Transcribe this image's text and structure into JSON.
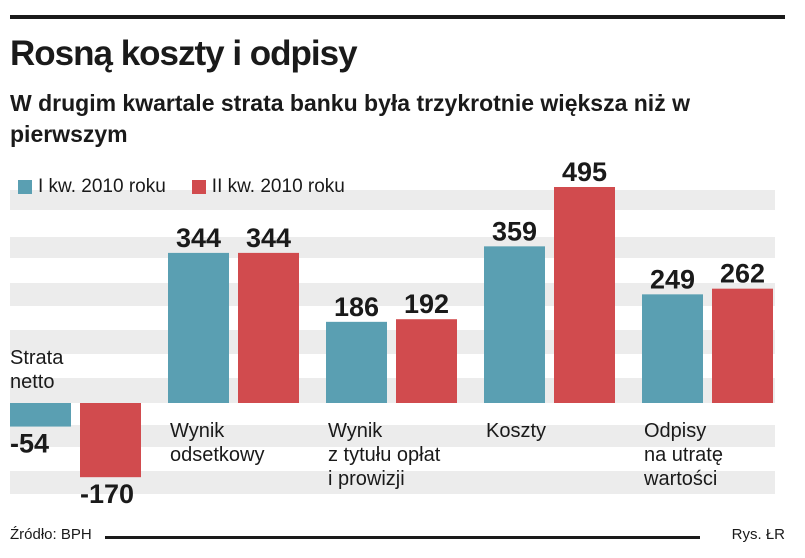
{
  "title": "Rosną koszty i odpisy",
  "subtitle": "W drugim kwartale strata banku była trzykrotnie większa niż w pierwszym",
  "source": "Źródło: BPH",
  "credit": "Rys. ŁR",
  "colors": {
    "series1": "#5a9fb2",
    "series2": "#d14b4e",
    "band": "#ececec"
  },
  "chart_data": {
    "type": "bar",
    "categories": [
      [
        "Strata",
        "netto"
      ],
      [
        "Wynik",
        "odsetkowy"
      ],
      [
        "Wynik",
        "z tytułu opłat",
        "i prowizji"
      ],
      [
        "Koszty"
      ],
      [
        "Odpisy",
        "na utratę",
        "wartości"
      ]
    ],
    "series": [
      {
        "name": "I kw. 2010 roku",
        "values": [
          -54,
          344,
          186,
          359,
          249
        ],
        "labels": [
          "-54",
          "344",
          "186",
          "359",
          "249"
        ]
      },
      {
        "name": "II kw. 2010 roku",
        "values": [
          -170,
          344,
          192,
          495,
          262
        ],
        "labels": [
          "-170",
          "344",
          "192",
          "495",
          "262"
        ]
      }
    ],
    "ylim": [
      -170,
      495
    ],
    "xlabel": "",
    "ylabel": "",
    "legend": "top-left"
  }
}
